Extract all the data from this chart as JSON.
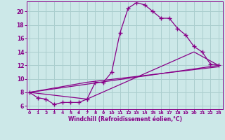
{
  "xlabel": "Windchill (Refroidissement éolien,°C)",
  "bg_color": "#cce8e8",
  "line_color": "#880088",
  "grid_color": "#aacece",
  "x_ticks": [
    0,
    1,
    2,
    3,
    4,
    5,
    6,
    7,
    8,
    9,
    10,
    11,
    12,
    13,
    14,
    15,
    16,
    17,
    18,
    19,
    20,
    21,
    22,
    23
  ],
  "y_ticks": [
    6,
    8,
    10,
    12,
    14,
    16,
    18,
    20
  ],
  "ylim": [
    5.5,
    21.5
  ],
  "xlim": [
    -0.3,
    23.5
  ],
  "line1_x": [
    0,
    1,
    2,
    3,
    4,
    5,
    6,
    7,
    8,
    9,
    10,
    11,
    12,
    13,
    14,
    15,
    16,
    17,
    18,
    19,
    20,
    21,
    22,
    23
  ],
  "line1_y": [
    8.0,
    7.2,
    7.0,
    6.2,
    6.5,
    6.5,
    6.5,
    7.0,
    9.5,
    9.5,
    11.0,
    16.8,
    20.5,
    21.3,
    21.0,
    20.0,
    19.0,
    19.0,
    17.5,
    16.5,
    14.8,
    14.0,
    12.2,
    12.0
  ],
  "line2_x": [
    0,
    23
  ],
  "line2_y": [
    8.0,
    12.0
  ],
  "line3_x": [
    0,
    7,
    20,
    23
  ],
  "line3_y": [
    8.0,
    7.0,
    14.0,
    12.0
  ],
  "line4_x": [
    0,
    7,
    23
  ],
  "line4_y": [
    8.0,
    9.5,
    11.8
  ]
}
